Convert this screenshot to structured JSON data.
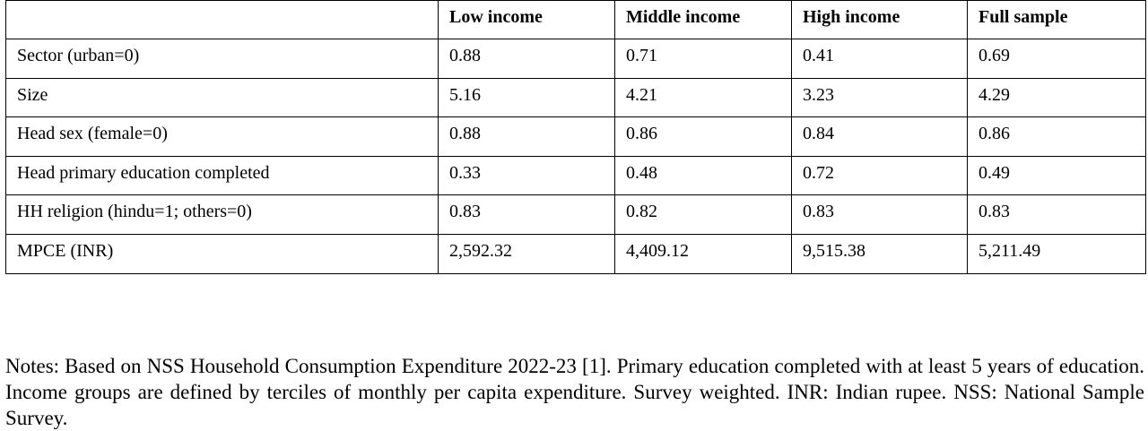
{
  "table": {
    "columns": [
      "",
      "Low income",
      "Middle income",
      "High income",
      "Full sample"
    ],
    "rows": [
      {
        "label": "Sector (urban=0)",
        "values": [
          "0.88",
          "0.71",
          "0.41",
          "0.69"
        ]
      },
      {
        "label": "Size",
        "values": [
          "5.16",
          "4.21",
          "3.23",
          "4.29"
        ]
      },
      {
        "label": "Head sex (female=0)",
        "values": [
          "0.88",
          "0.86",
          "0.84",
          "0.86"
        ]
      },
      {
        "label": "Head primary education completed",
        "values": [
          "0.33",
          "0.48",
          "0.72",
          "0.49"
        ]
      },
      {
        "label": "HH religion (hindu=1; others=0)",
        "values": [
          "0.83",
          "0.82",
          "0.83",
          "0.83"
        ]
      },
      {
        "label": "MPCE (INR)",
        "values": [
          "2,592.32",
          "4,409.12",
          "9,515.38",
          "5,211.49"
        ]
      }
    ]
  },
  "notes": "Notes: Based on NSS Household Consumption Expenditure 2022-23 [1]. Primary education completed with at least 5 years of education. Income groups are defined by terciles of monthly per capita expenditure. Survey weighted. INR: Indian rupee. NSS: National Sample Survey."
}
